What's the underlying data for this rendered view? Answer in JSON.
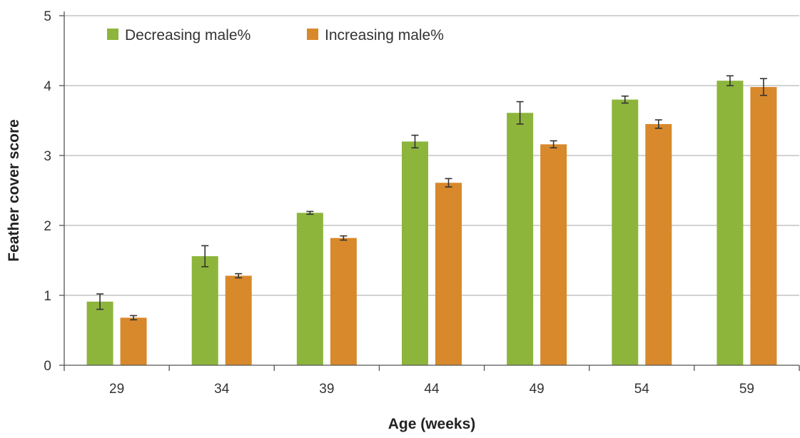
{
  "chart_data": {
    "type": "bar",
    "xlabel": "Age (weeks)",
    "ylabel": "Feather cover score",
    "ylim": [
      0,
      5
    ],
    "yticks": [
      "0",
      "1",
      "2",
      "3",
      "4",
      "5"
    ],
    "categories": [
      "29",
      "34",
      "39",
      "44",
      "49",
      "54",
      "59"
    ],
    "series": [
      {
        "name": "Decreasing male%",
        "color": "#8db53c",
        "values": [
          0.91,
          1.56,
          2.18,
          3.2,
          3.61,
          3.8,
          4.07
        ],
        "errors": [
          0.11,
          0.15,
          0.02,
          0.09,
          0.16,
          0.05,
          0.07
        ]
      },
      {
        "name": "Increasing male%",
        "color": "#d8892b",
        "values": [
          0.68,
          1.28,
          1.82,
          2.61,
          3.16,
          3.45,
          3.98
        ],
        "errors": [
          0.03,
          0.03,
          0.03,
          0.06,
          0.05,
          0.06,
          0.12
        ]
      }
    ],
    "grid": "horizontal",
    "legend_position": "top-left"
  }
}
